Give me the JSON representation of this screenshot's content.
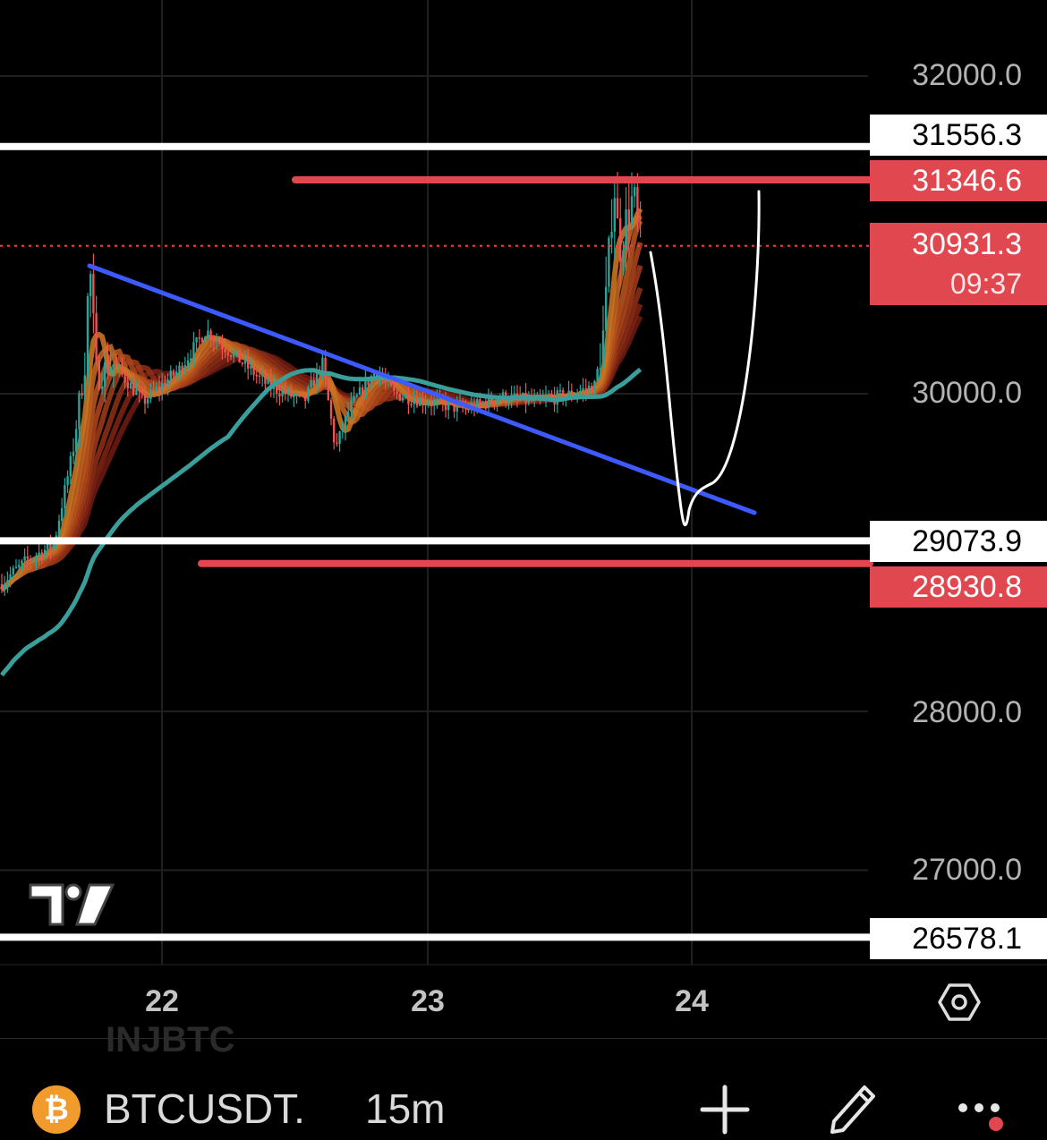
{
  "chart_data": {
    "type": "candlestick",
    "symbol": "BTCUSDT.",
    "interval": "15m",
    "y_ticks": [
      "32000.0",
      "30000.0",
      "28000.0",
      "27000.0"
    ],
    "x_ticks": [
      "22",
      "23",
      "24"
    ],
    "last_price": "30931.3",
    "countdown": "09:37",
    "price_levels": [
      {
        "label": "31556.3",
        "value": 31556.3,
        "style": "white"
      },
      {
        "label": "31346.6",
        "value": 31346.6,
        "style": "red"
      },
      {
        "label": "29073.9",
        "value": 29073.9,
        "style": "white"
      },
      {
        "label": "28930.8",
        "value": 28930.8,
        "style": "red"
      },
      {
        "label": "26578.1",
        "value": 26578.1,
        "style": "white"
      }
    ],
    "ylim": [
      26500,
      32200
    ],
    "colors": {
      "up": "#26a69a",
      "down": "#ef5350",
      "trendline": "#3d5afe",
      "ma_slow": "#3a9e9a",
      "level_white": "#ffffff",
      "level_red": "#e0474f"
    }
  },
  "ui": {
    "watermark": "INJBTC",
    "coin_glyph": "₿",
    "icons": [
      "tradingview-logo-icon",
      "settings-icon",
      "add-icon",
      "drawing-pen-icon",
      "more-icon"
    ]
  }
}
